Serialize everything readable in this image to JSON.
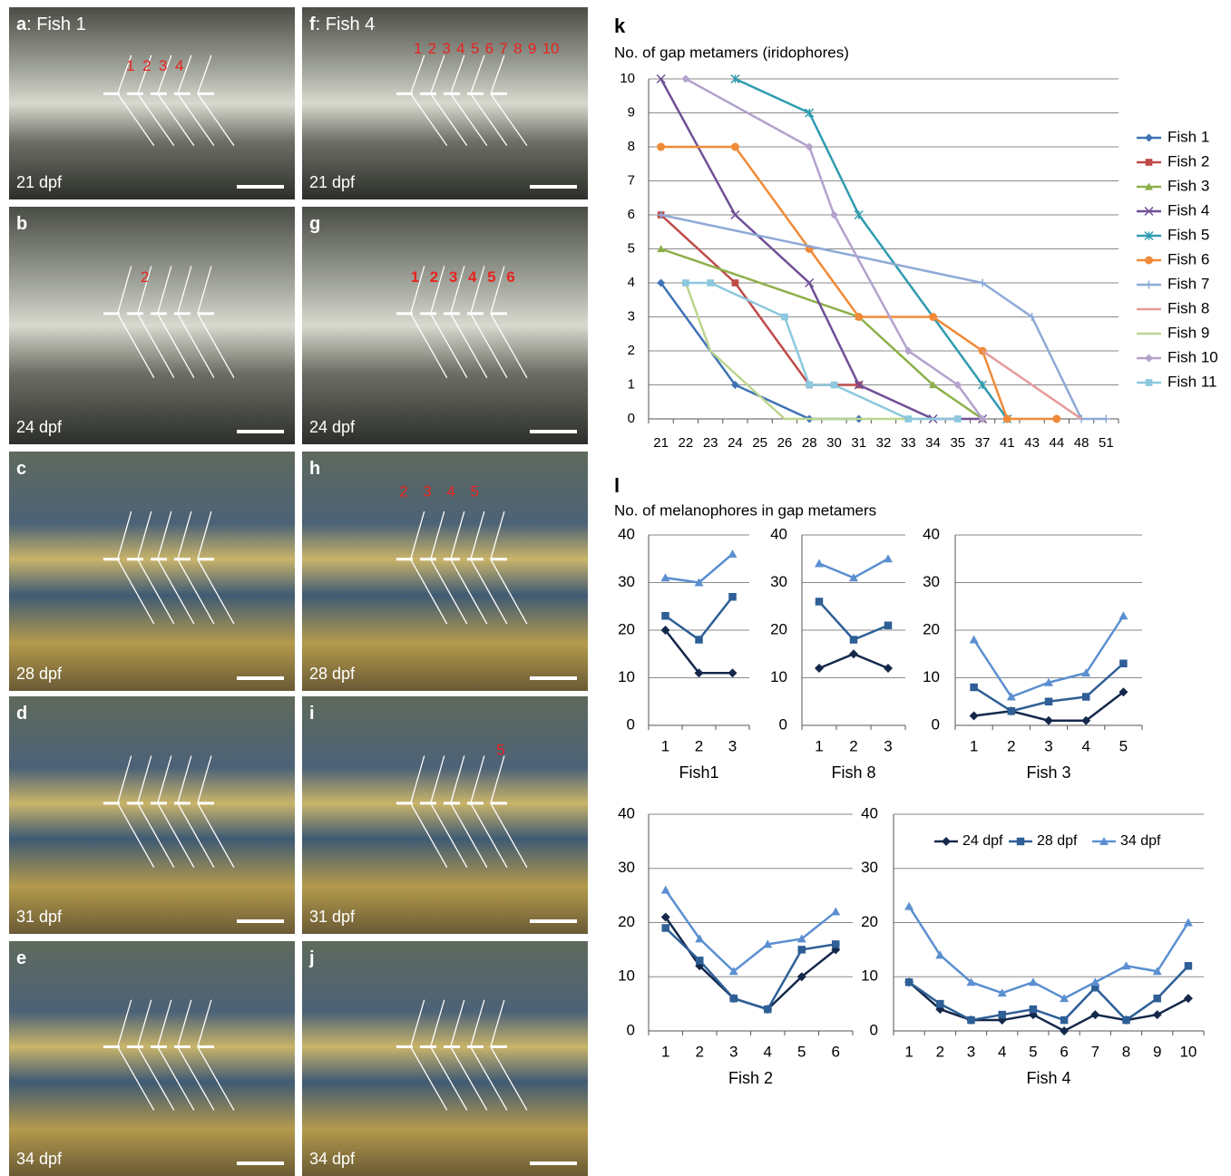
{
  "photos": [
    {
      "letter": "a",
      "label": ": Fish 1",
      "stage": "21 dpf",
      "numbers": [
        "1",
        "2",
        "3",
        "4"
      ]
    },
    {
      "letter": "b",
      "stage": "24 dpf",
      "numbers": [
        "2"
      ]
    },
    {
      "letter": "c",
      "stage": "28 dpf"
    },
    {
      "letter": "d",
      "stage": "31 dpf"
    },
    {
      "letter": "e",
      "stage": "34 dpf"
    },
    {
      "letter": "f",
      "label": ": Fish 4",
      "stage": "21 dpf",
      "numbers": [
        "1",
        "2",
        "3",
        "4",
        "5",
        "6",
        "7",
        "8",
        "9",
        "10"
      ]
    },
    {
      "letter": "g",
      "stage": "24 dpf",
      "numbers": [
        "1",
        "2",
        "3",
        "4",
        "5",
        "6"
      ]
    },
    {
      "letter": "h",
      "stage": "28 dpf",
      "numbers": [
        "2",
        "3",
        "4",
        "5"
      ]
    },
    {
      "letter": "i",
      "stage": "31 dpf",
      "numbers": [
        "5"
      ]
    },
    {
      "letter": "j",
      "stage": "34 dpf"
    }
  ],
  "panel_l": {
    "letter": "l",
    "title": "No. of melanophores in gap metamers"
  },
  "chart_data": [
    {
      "type": "line",
      "panel": "k",
      "title": "No. of gap metamers (iridophores)",
      "categories": [
        21,
        22,
        23,
        24,
        25,
        26,
        28,
        30,
        31,
        32,
        33,
        34,
        35,
        37,
        41,
        43,
        44,
        48,
        51
      ],
      "ylim": [
        0,
        10
      ],
      "yticks": [
        0,
        1,
        2,
        3,
        4,
        5,
        6,
        7,
        8,
        9,
        10
      ],
      "grid": true,
      "legend": "right",
      "series": [
        {
          "name": "Fish 1",
          "color": "#3f73b5",
          "marker": "diamond",
          "x": [
            21,
            24,
            28,
            31
          ],
          "values": [
            4,
            1,
            0,
            0
          ]
        },
        {
          "name": "Fish 2",
          "color": "#be4b48",
          "marker": "square",
          "x": [
            21,
            24,
            28,
            31
          ],
          "values": [
            6,
            4,
            1,
            1
          ]
        },
        {
          "name": "Fish 3",
          "color": "#8cb049",
          "marker": "triangle",
          "x": [
            21,
            31,
            34,
            37
          ],
          "values": [
            5,
            3,
            1,
            0
          ]
        },
        {
          "name": "Fish 4",
          "color": "#6f4f96",
          "marker": "x",
          "x": [
            21,
            24,
            28,
            31,
            34,
            37
          ],
          "values": [
            10,
            6,
            4,
            1,
            0,
            0
          ]
        },
        {
          "name": "Fish 5",
          "color": "#2f9bb0",
          "marker": "star",
          "x": [
            24,
            28,
            31,
            37,
            41
          ],
          "values": [
            10,
            9,
            6,
            1,
            0
          ]
        },
        {
          "name": "Fish 6",
          "color": "#ef8a38",
          "marker": "circle",
          "x": [
            21,
            24,
            28,
            31,
            34,
            37,
            41,
            44
          ],
          "values": [
            8,
            8,
            5,
            3,
            3,
            2,
            0,
            0
          ]
        },
        {
          "name": "Fish 7",
          "color": "#8ea9d6",
          "marker": "plus",
          "x": [
            21,
            37,
            43,
            48,
            51
          ],
          "values": [
            6,
            4,
            3,
            0,
            0
          ]
        },
        {
          "name": "Fish 8",
          "color": "#e39a98",
          "marker": "none",
          "x": [
            37,
            48
          ],
          "values": [
            2,
            0
          ]
        },
        {
          "name": "Fish 9",
          "color": "#bcd58e",
          "marker": "none",
          "x": [
            22,
            23,
            26,
            34
          ],
          "values": [
            4,
            2,
            0,
            0
          ]
        },
        {
          "name": "Fish 10",
          "color": "#b3a2cc",
          "marker": "diamond",
          "x": [
            22,
            28,
            30,
            33,
            35,
            37
          ],
          "values": [
            10,
            8,
            6,
            2,
            1,
            0
          ]
        },
        {
          "name": "Fish 11",
          "color": "#8cc8de",
          "marker": "square",
          "x": [
            22,
            23,
            26,
            28,
            30,
            33,
            35
          ],
          "values": [
            4,
            4,
            3,
            1,
            1,
            0,
            0
          ]
        }
      ]
    },
    {
      "type": "line",
      "xlabel": "Fish1",
      "categories": [
        1,
        2,
        3
      ],
      "ylim": [
        0,
        40
      ],
      "yticks": [
        0,
        10,
        20,
        30,
        40
      ],
      "grid": true,
      "series": [
        {
          "color": "#14284b",
          "marker": "diamond",
          "values": [
            20,
            11,
            11
          ]
        },
        {
          "color": "#2e5f96",
          "marker": "square",
          "values": [
            23,
            18,
            27
          ]
        },
        {
          "color": "#5b8fd0",
          "marker": "triangle",
          "values": [
            31,
            30,
            36
          ]
        }
      ]
    },
    {
      "type": "line",
      "xlabel": "Fish 8",
      "categories": [
        1,
        2,
        3
      ],
      "ylim": [
        0,
        40
      ],
      "yticks": [
        0,
        10,
        20,
        30,
        40
      ],
      "grid": true,
      "series": [
        {
          "color": "#14284b",
          "marker": "diamond",
          "values": [
            12,
            15,
            12
          ]
        },
        {
          "color": "#2e5f96",
          "marker": "square",
          "values": [
            26,
            18,
            21
          ]
        },
        {
          "color": "#5b8fd0",
          "marker": "triangle",
          "values": [
            34,
            31,
            35
          ]
        }
      ]
    },
    {
      "type": "line",
      "xlabel": "Fish 3",
      "categories": [
        1,
        2,
        3,
        4,
        5
      ],
      "ylim": [
        0,
        40
      ],
      "yticks": [
        0,
        10,
        20,
        30,
        40
      ],
      "grid": true,
      "series": [
        {
          "color": "#14284b",
          "marker": "diamond",
          "values": [
            2,
            3,
            1,
            1,
            7
          ]
        },
        {
          "color": "#2e5f96",
          "marker": "square",
          "values": [
            8,
            3,
            5,
            6,
            13
          ]
        },
        {
          "color": "#5b8fd0",
          "marker": "triangle",
          "values": [
            18,
            6,
            9,
            11,
            23
          ]
        }
      ]
    },
    {
      "type": "line",
      "xlabel": "Fish 2",
      "categories": [
        1,
        2,
        3,
        4,
        5,
        6
      ],
      "ylim": [
        0,
        40
      ],
      "yticks": [
        0,
        10,
        20,
        30,
        40
      ],
      "grid": true,
      "series": [
        {
          "color": "#14284b",
          "marker": "diamond",
          "values": [
            21,
            12,
            6,
            4,
            10,
            15
          ]
        },
        {
          "color": "#2e5f96",
          "marker": "square",
          "values": [
            19,
            13,
            6,
            4,
            15,
            16
          ]
        },
        {
          "color": "#5b8fd0",
          "marker": "triangle",
          "values": [
            26,
            17,
            11,
            16,
            17,
            22
          ]
        }
      ]
    },
    {
      "type": "line",
      "xlabel": "Fish 4",
      "categories": [
        1,
        2,
        3,
        4,
        5,
        6,
        7,
        8,
        9,
        10
      ],
      "ylim": [
        0,
        40
      ],
      "yticks": [
        0,
        10,
        20,
        30,
        40
      ],
      "grid": true,
      "legend": "top",
      "series": [
        {
          "name": "24 dpf",
          "color": "#14284b",
          "marker": "diamond",
          "values": [
            9,
            4,
            2,
            2,
            3,
            0,
            3,
            2,
            3,
            6
          ]
        },
        {
          "name": "28 dpf",
          "color": "#2e5f96",
          "marker": "square",
          "values": [
            9,
            5,
            2,
            3,
            4,
            2,
            8,
            2,
            6,
            12
          ]
        },
        {
          "name": "34 dpf",
          "color": "#5b8fd0",
          "marker": "triangle",
          "values": [
            23,
            14,
            9,
            7,
            9,
            6,
            9,
            12,
            11,
            20
          ]
        }
      ]
    }
  ]
}
